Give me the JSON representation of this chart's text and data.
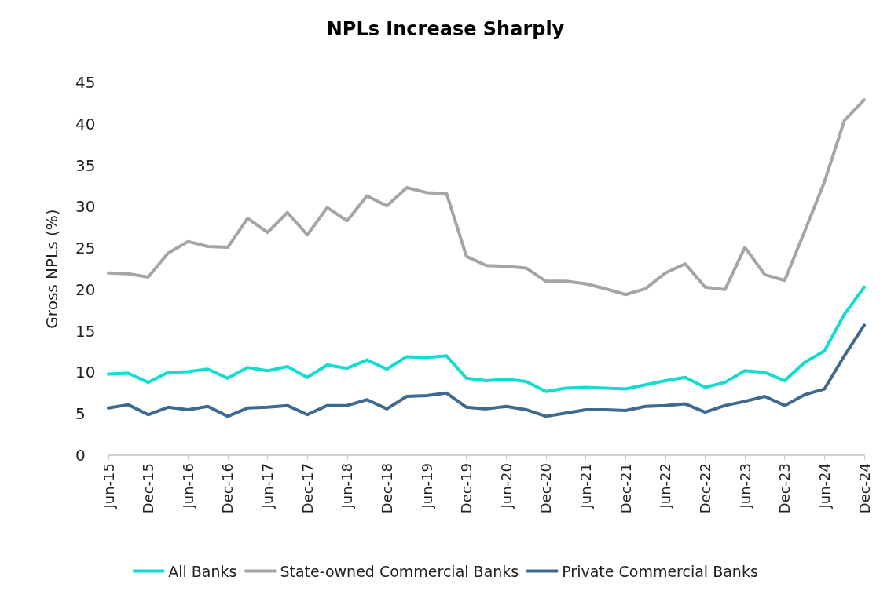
{
  "chart_data": {
    "type": "line",
    "title": "NPLs Increase Sharply",
    "ylabel": "Gross NPLs (%)",
    "categories": [
      "Jun-15",
      null,
      "Dec-15",
      null,
      "Jun-16",
      null,
      "Dec-16",
      null,
      "Jun-17",
      null,
      "Dec-17",
      null,
      "Jun-18",
      null,
      "Dec-18",
      null,
      "Jun-19",
      null,
      "Dec-19",
      null,
      "Jun-20",
      null,
      "Dec-20",
      null,
      "Jun-21",
      null,
      "Dec-21",
      null,
      "Jun-22",
      null,
      "Dec-22",
      null,
      "Jun-23",
      null,
      "Dec-23",
      null,
      "Jun-24",
      null,
      "Dec-24"
    ],
    "series": [
      {
        "name": "All Banks",
        "color": "#13dcd0",
        "values": [
          9.8,
          9.9,
          8.8,
          10.0,
          10.1,
          10.4,
          9.3,
          10.6,
          10.2,
          10.7,
          9.4,
          10.9,
          10.5,
          11.5,
          10.4,
          11.9,
          11.8,
          12.0,
          9.3,
          9.0,
          9.2,
          8.9,
          7.7,
          8.1,
          8.2,
          8.1,
          8.0,
          8.5,
          9.0,
          9.4,
          8.2,
          8.8,
          10.2,
          10.0,
          9.0,
          11.2,
          12.6,
          17.0,
          20.3
        ]
      },
      {
        "name": "State-owned Commercial Banks",
        "color": "#a5a5a5",
        "values": [
          22.0,
          21.9,
          21.5,
          24.4,
          25.8,
          25.2,
          25.1,
          28.6,
          26.9,
          29.3,
          26.6,
          29.9,
          28.3,
          31.3,
          30.1,
          32.3,
          31.7,
          31.6,
          24.0,
          22.9,
          22.8,
          22.6,
          21.0,
          21.0,
          20.7,
          20.1,
          19.4,
          20.1,
          22.0,
          23.1,
          20.3,
          20.0,
          25.1,
          21.8,
          21.1,
          27.0,
          33.0,
          40.4,
          42.9
        ]
      },
      {
        "name": "Private Commercial Banks",
        "color": "#3f6a90",
        "values": [
          5.7,
          6.1,
          4.9,
          5.8,
          5.5,
          5.9,
          4.7,
          5.7,
          5.8,
          6.0,
          4.9,
          6.0,
          6.0,
          6.7,
          5.6,
          7.1,
          7.2,
          7.5,
          5.8,
          5.6,
          5.9,
          5.5,
          4.7,
          5.1,
          5.5,
          5.5,
          5.4,
          5.9,
          6.0,
          6.2,
          5.2,
          6.0,
          6.5,
          7.1,
          6.0,
          7.3,
          8.0,
          12.0,
          15.7
        ]
      }
    ],
    "ylim": [
      0,
      45
    ],
    "yticks": [
      0,
      5,
      10,
      15,
      20,
      25,
      30,
      35,
      40,
      45
    ],
    "grid": false,
    "legend": "bottom",
    "marker": "none",
    "line_style": "solid"
  }
}
